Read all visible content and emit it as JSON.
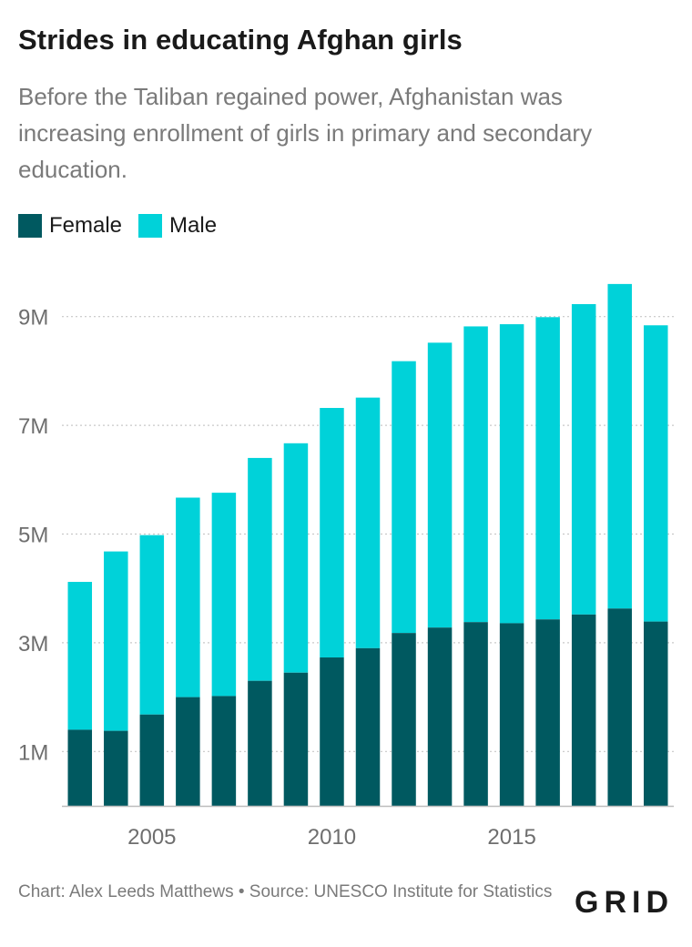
{
  "header": {
    "title": "Strides in educating Afghan girls",
    "subtitle": "Before the Taliban regained power, Afghanistan was increasing enrollment of girls in primary and secondary education."
  },
  "legend": {
    "female_label": "Female",
    "male_label": "Male"
  },
  "colors": {
    "female": "#005960",
    "male": "#00d2d9",
    "grid": "#c8c8c8",
    "axis_text": "#6e6e6e"
  },
  "footer": {
    "credit": "Chart: Alex Leeds Matthews • Source: UNESCO Institute for Statistics",
    "logo": "GRID"
  },
  "chart_data": {
    "type": "bar",
    "stacked": true,
    "categories": [
      2003,
      2004,
      2005,
      2006,
      2007,
      2008,
      2009,
      2010,
      2011,
      2012,
      2013,
      2014,
      2015,
      2016,
      2017,
      2018,
      2019
    ],
    "series": [
      {
        "name": "Female",
        "values": [
          1.4,
          1.38,
          1.68,
          2.0,
          2.02,
          2.3,
          2.45,
          2.73,
          2.9,
          3.18,
          3.28,
          3.38,
          3.36,
          3.43,
          3.52,
          3.63,
          3.39
        ]
      },
      {
        "name": "Male",
        "values": [
          2.72,
          3.3,
          3.3,
          3.67,
          3.74,
          4.1,
          4.22,
          4.59,
          4.61,
          5.0,
          5.24,
          5.44,
          5.5,
          5.56,
          5.71,
          5.97,
          5.45
        ]
      }
    ],
    "unit": "M",
    "x_ticks": [
      "2005",
      "2010",
      "2015"
    ],
    "y_ticks": [
      {
        "value": 1,
        "label": "1M"
      },
      {
        "value": 3,
        "label": "3M"
      },
      {
        "value": 5,
        "label": "5M"
      },
      {
        "value": 7,
        "label": "7M"
      },
      {
        "value": 9,
        "label": "9M"
      }
    ],
    "ylim": [
      0,
      9.6
    ],
    "grid": true,
    "legend_position": "top-left"
  }
}
